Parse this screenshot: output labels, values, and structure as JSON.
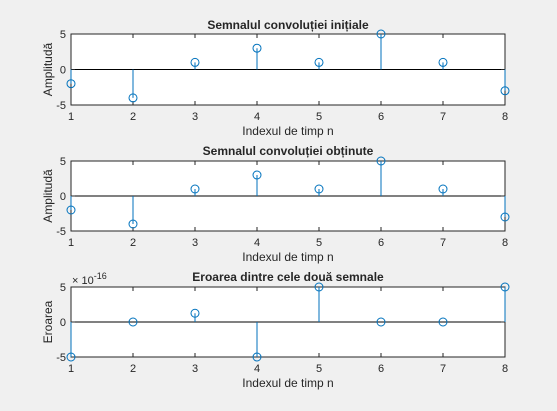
{
  "figure": {
    "background": "#f0f0f0",
    "axes_background": "#ffffff",
    "stem_color": "#0072bd",
    "axis_color": "#262626"
  },
  "chart_data": [
    {
      "type": "stem",
      "title": "Semnalul convoluției inițiale",
      "xlabel": "Indexul de timp n",
      "ylabel": "Amplitudă",
      "x": [
        1,
        2,
        3,
        4,
        5,
        6,
        7,
        8
      ],
      "values": [
        -2,
        -4,
        1,
        3,
        1,
        5,
        1,
        -3
      ],
      "xlim": [
        1,
        8
      ],
      "ylim": [
        -5,
        5
      ],
      "xticks": [
        "1",
        "2",
        "3",
        "4",
        "5",
        "6",
        "7",
        "8"
      ],
      "yticks": [
        -5,
        0,
        5
      ],
      "yticklabels": [
        "-5",
        "0",
        "5"
      ],
      "exponent_label": "",
      "grid": false
    },
    {
      "type": "stem",
      "title": "Semnalul convoluției obținute",
      "xlabel": "Indexul de timp n",
      "ylabel": "Amplitudă",
      "x": [
        1,
        2,
        3,
        4,
        5,
        6,
        7,
        8
      ],
      "values": [
        -2,
        -4,
        1,
        3,
        1,
        5,
        1,
        -3
      ],
      "xlim": [
        1,
        8
      ],
      "ylim": [
        -5,
        5
      ],
      "xticks": [
        "1",
        "2",
        "3",
        "4",
        "5",
        "6",
        "7",
        "8"
      ],
      "yticks": [
        -5,
        0,
        5
      ],
      "yticklabels": [
        "-5",
        "0",
        "5"
      ],
      "exponent_label": "",
      "grid": false
    },
    {
      "type": "stem",
      "title": "Eroarea dintre cele două semnale",
      "xlabel": "Indexul de timp n",
      "ylabel": "Eroarea",
      "x": [
        1,
        2,
        3,
        4,
        5,
        6,
        7,
        8
      ],
      "values": [
        -4.44e-16,
        0,
        1.11e-16,
        -4.44e-16,
        4.44e-16,
        0,
        0,
        4.44e-16
      ],
      "xlim": [
        1,
        8
      ],
      "ylim": [
        -4.44e-16,
        4.44e-16
      ],
      "xticks": [
        "1",
        "2",
        "3",
        "4",
        "5",
        "6",
        "7",
        "8"
      ],
      "yticks": [
        -5e-16,
        0,
        5e-16
      ],
      "yticklabels": [
        "-5",
        "0",
        "5"
      ],
      "exponent_label": "× 10",
      "exponent_power": "-16",
      "grid": false
    }
  ]
}
